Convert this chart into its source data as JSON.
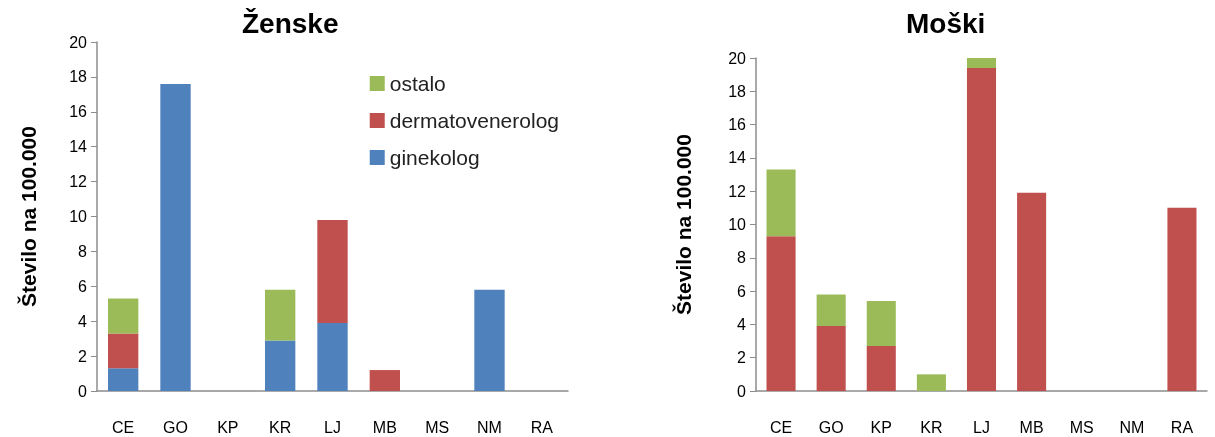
{
  "chart_data": [
    {
      "type": "bar",
      "title": "Ženske",
      "ylabel": "Število na 100.000",
      "categories": [
        "CE",
        "GO",
        "KP",
        "KR",
        "LJ",
        "MB",
        "MS",
        "NM",
        "RA"
      ],
      "stacked": true,
      "series": [
        {
          "name": "ginekolog",
          "color": "#4f81bd",
          "values": [
            1.3,
            17.6,
            null,
            2.9,
            3.9,
            null,
            null,
            5.8,
            null
          ]
        },
        {
          "name": "dermatovenerolog",
          "color": "#c0504d",
          "values": [
            2.0,
            null,
            null,
            null,
            5.9,
            1.2,
            null,
            null,
            null
          ]
        },
        {
          "name": "ostalo",
          "color": "#9bbb59",
          "values": [
            2.0,
            null,
            null,
            2.9,
            null,
            null,
            null,
            null,
            null
          ]
        }
      ],
      "ylim": [
        0,
        20
      ],
      "yticks": [
        0,
        2,
        4,
        6,
        8,
        10,
        12,
        14,
        16,
        18,
        20
      ],
      "grid": false,
      "legend": "top right"
    },
    {
      "type": "bar",
      "title": "Moški",
      "ylabel": "Število na 100.000",
      "categories": [
        "CE",
        "GO",
        "KP",
        "KR",
        "LJ",
        "MB",
        "MS",
        "NM",
        "RA"
      ],
      "stacked": true,
      "series": [
        {
          "color": "#c0504d",
          "values": [
            9.3,
            3.9,
            2.7,
            null,
            19.4,
            11.9,
            null,
            null,
            11.0
          ]
        },
        {
          "color": "#9bbb59",
          "values": [
            4.0,
            1.9,
            2.7,
            1.0,
            0.6,
            null,
            null,
            null,
            null
          ]
        }
      ],
      "ylim": [
        0,
        20
      ],
      "yticks": [
        0,
        2,
        4,
        6,
        8,
        10,
        12,
        14,
        16,
        18,
        20
      ],
      "grid": false,
      "legend": false
    }
  ]
}
